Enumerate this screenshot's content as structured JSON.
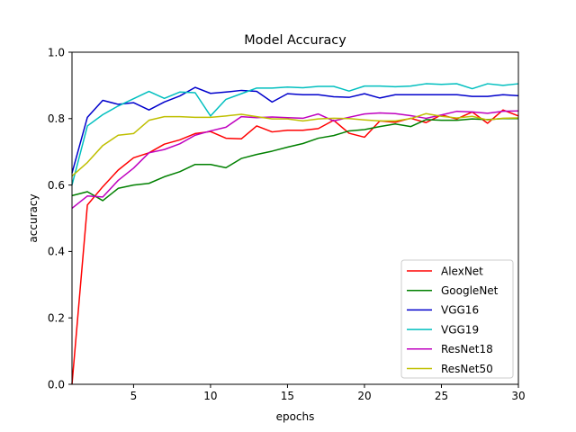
{
  "chart_data": {
    "type": "line",
    "title": "Model Accuracy",
    "xlabel": "epochs",
    "ylabel": "accuracy",
    "xlim": [
      1,
      30
    ],
    "ylim": [
      0.0,
      1.0
    ],
    "x_ticks": [
      5,
      10,
      15,
      20,
      25,
      30
    ],
    "y_ticks": [
      0.0,
      0.2,
      0.4,
      0.6,
      0.8,
      1.0
    ],
    "x_tick_labels": [
      "5",
      "10",
      "15",
      "20",
      "25",
      "30"
    ],
    "y_tick_labels": [
      "0.0",
      "0.2",
      "0.4",
      "0.6",
      "0.8",
      "1.0"
    ],
    "grid": false,
    "legend_position": "lower-right",
    "x": [
      1,
      2,
      3,
      4,
      5,
      6,
      7,
      8,
      9,
      10,
      11,
      12,
      13,
      14,
      15,
      16,
      17,
      18,
      19,
      20,
      21,
      22,
      23,
      24,
      25,
      26,
      27,
      28,
      29,
      30
    ],
    "series": [
      {
        "name": "AlexNet",
        "color": "#ff0000",
        "values": [
          0.0,
          0.54,
          0.595,
          0.645,
          0.682,
          0.697,
          0.723,
          0.736,
          0.755,
          0.761,
          0.741,
          0.739,
          0.778,
          0.76,
          0.765,
          0.765,
          0.77,
          0.795,
          0.756,
          0.744,
          0.793,
          0.789,
          0.801,
          0.788,
          0.811,
          0.799,
          0.82,
          0.786,
          0.826,
          0.808
        ]
      },
      {
        "name": "GoogleNet",
        "color": "#008000",
        "values": [
          0.568,
          0.58,
          0.553,
          0.59,
          0.6,
          0.605,
          0.625,
          0.64,
          0.662,
          0.662,
          0.652,
          0.68,
          0.692,
          0.702,
          0.714,
          0.725,
          0.741,
          0.749,
          0.763,
          0.767,
          0.776,
          0.784,
          0.776,
          0.797,
          0.795,
          0.795,
          0.799,
          0.797,
          0.8,
          0.8
        ]
      },
      {
        "name": "VGG16",
        "color": "#0000cc",
        "values": [
          0.636,
          0.804,
          0.855,
          0.843,
          0.848,
          0.826,
          0.85,
          0.868,
          0.894,
          0.876,
          0.88,
          0.885,
          0.882,
          0.85,
          0.875,
          0.872,
          0.872,
          0.866,
          0.864,
          0.875,
          0.862,
          0.872,
          0.872,
          0.872,
          0.872,
          0.872,
          0.867,
          0.867,
          0.872,
          0.869
        ]
      },
      {
        "name": "VGG19",
        "color": "#00bfbf",
        "values": [
          0.6,
          0.778,
          0.812,
          0.838,
          0.86,
          0.882,
          0.861,
          0.88,
          0.878,
          0.808,
          0.858,
          0.875,
          0.892,
          0.892,
          0.895,
          0.893,
          0.897,
          0.897,
          0.883,
          0.898,
          0.898,
          0.896,
          0.898,
          0.905,
          0.903,
          0.905,
          0.89,
          0.905,
          0.9,
          0.905
        ]
      },
      {
        "name": "ResNet18",
        "color": "#bf00bf",
        "values": [
          0.53,
          0.567,
          0.564,
          0.614,
          0.651,
          0.697,
          0.707,
          0.724,
          0.75,
          0.763,
          0.774,
          0.806,
          0.803,
          0.805,
          0.803,
          0.801,
          0.814,
          0.793,
          0.804,
          0.814,
          0.817,
          0.815,
          0.809,
          0.801,
          0.811,
          0.822,
          0.82,
          0.816,
          0.822,
          0.823
        ]
      },
      {
        "name": "ResNet50",
        "color": "#bfbf00",
        "values": [
          0.627,
          0.668,
          0.719,
          0.75,
          0.755,
          0.795,
          0.806,
          0.806,
          0.804,
          0.804,
          0.808,
          0.813,
          0.806,
          0.799,
          0.799,
          0.793,
          0.799,
          0.801,
          0.8,
          0.796,
          0.793,
          0.793,
          0.8,
          0.815,
          0.807,
          0.802,
          0.807,
          0.796,
          0.801,
          0.802
        ]
      }
    ]
  }
}
